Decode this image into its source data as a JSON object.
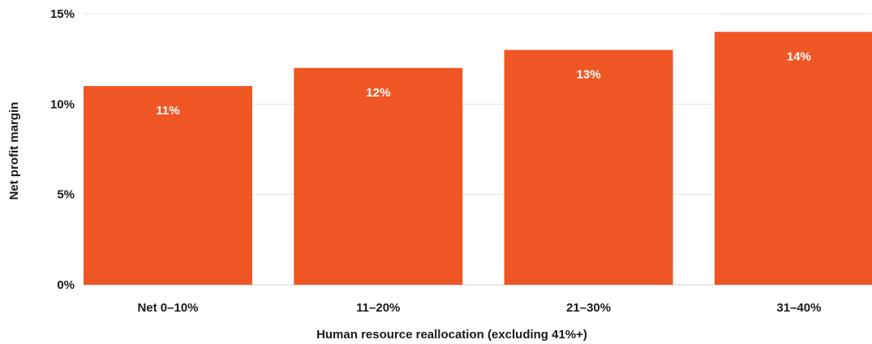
{
  "chart_data": {
    "type": "bar",
    "categories": [
      "Net 0–10%",
      "11–20%",
      "21–30%",
      "31–40%"
    ],
    "values": [
      11,
      12,
      13,
      14
    ],
    "data_labels": [
      "11%",
      "12%",
      "13%",
      "14%"
    ],
    "title": "",
    "xlabel": "Human resource reallocation (excluding 41%+)",
    "ylabel": "Net profit margin",
    "ylim": [
      0,
      15
    ],
    "y_ticks": [
      0,
      5,
      10,
      15
    ],
    "y_tick_labels": [
      "0%",
      "5%",
      "10%",
      "15%"
    ],
    "grid": true,
    "legend": "none",
    "bar_color": "#f05623"
  }
}
